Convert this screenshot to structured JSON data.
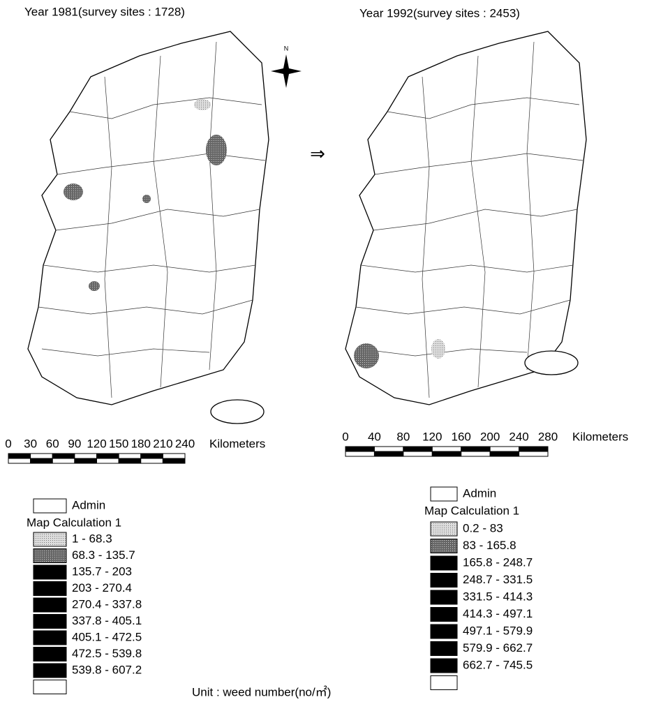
{
  "panels": [
    {
      "title": "Year 1981(survey sites : 1728)",
      "scale": {
        "ticks": [
          0,
          30,
          60,
          90,
          120,
          150,
          180,
          210,
          240
        ],
        "unit": "Kilometers"
      },
      "legend": {
        "admin": "Admin",
        "heading": "Map Calculation 1",
        "classes": [
          "1 - 68.3",
          "68.3 - 135.7",
          "135.7 - 203",
          "203 - 270.4",
          "270.4 - 337.8",
          "337.8 - 405.1",
          "405.1 - 472.5",
          "472.5 - 539.8",
          "539.8 - 607.2"
        ]
      }
    },
    {
      "title": "Year 1992(survey sites : 2453)",
      "scale": {
        "ticks": [
          0,
          40,
          80,
          120,
          160,
          200,
          240,
          280
        ],
        "unit": "Kilometers"
      },
      "legend": {
        "admin": "Admin",
        "heading": "Map Calculation 1",
        "classes": [
          "0.2 - 83",
          "83 - 165.8",
          "165.8 - 248.7",
          "248.7 - 331.5",
          "331.5 - 414.3",
          "414.3 - 497.1",
          "497.1 - 579.9",
          "579.9 - 662.7",
          "662.7 - 745.5"
        ]
      }
    }
  ],
  "unit_note": "Unit : weed number(no/㎡)",
  "compass": "N"
}
